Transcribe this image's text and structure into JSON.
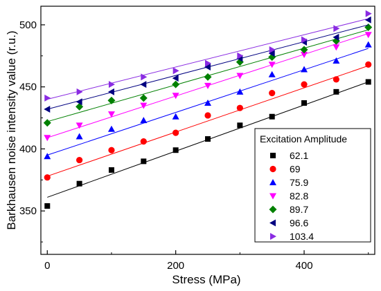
{
  "chart_data": {
    "type": "scatter",
    "xlabel": "Stress (MPa)",
    "ylabel": "Barkhausen noise intensity value (r.u.)",
    "xlim": [
      -10,
      510
    ],
    "ylim": [
      315,
      515
    ],
    "xticks": [
      0,
      200,
      400
    ],
    "yticks": [
      350,
      400,
      450,
      500
    ],
    "x_minor_ticks": [
      100,
      300,
      500
    ],
    "y_minor_ticks": [
      325,
      375,
      425,
      475
    ],
    "grid": false,
    "legend": {
      "title": "Excitation Amplitude",
      "position": "right"
    },
    "x": [
      0,
      50,
      100,
      150,
      200,
      250,
      300,
      350,
      400,
      450,
      500
    ],
    "series": [
      {
        "name": "62.1",
        "color": "#000000",
        "marker": "square",
        "values": [
          354,
          372,
          383,
          390,
          399,
          408,
          419,
          426,
          437,
          446,
          454
        ],
        "fit": [
          361,
          454
        ]
      },
      {
        "name": "69",
        "color": "#ff0000",
        "marker": "circle",
        "values": [
          377,
          391,
          399,
          406,
          413,
          427,
          433,
          445,
          452,
          456,
          468
        ],
        "fit": [
          378,
          467
        ]
      },
      {
        "name": "75.9",
        "color": "#0000ff",
        "marker": "triangle-up",
        "values": [
          394,
          410,
          416,
          423,
          426,
          437,
          446,
          460,
          464,
          471,
          484
        ],
        "fit": [
          395,
          481
        ]
      },
      {
        "name": "82.8",
        "color": "#ff00ff",
        "marker": "triangle-down",
        "values": [
          409,
          419,
          428,
          435,
          443,
          451,
          459,
          468,
          476,
          482,
          492
        ],
        "fit": [
          409,
          493
        ]
      },
      {
        "name": "89.7",
        "color": "#008000",
        "marker": "diamond",
        "values": [
          421,
          434,
          439,
          441,
          452,
          458,
          470,
          474,
          480,
          487,
          498
        ],
        "fit": [
          422,
          496
        ]
      },
      {
        "name": "96.6",
        "color": "#000080",
        "marker": "triangle-left",
        "values": [
          432,
          438,
          446,
          452,
          457,
          466,
          473,
          477,
          486,
          490,
          504
        ],
        "fit": [
          432,
          500
        ]
      },
      {
        "name": "103.4",
        "color": "#8a2be2",
        "marker": "triangle-right",
        "values": [
          441,
          446,
          452,
          458,
          463,
          469,
          475,
          480,
          488,
          497,
          509
        ],
        "fit": [
          440,
          505
        ]
      }
    ]
  }
}
